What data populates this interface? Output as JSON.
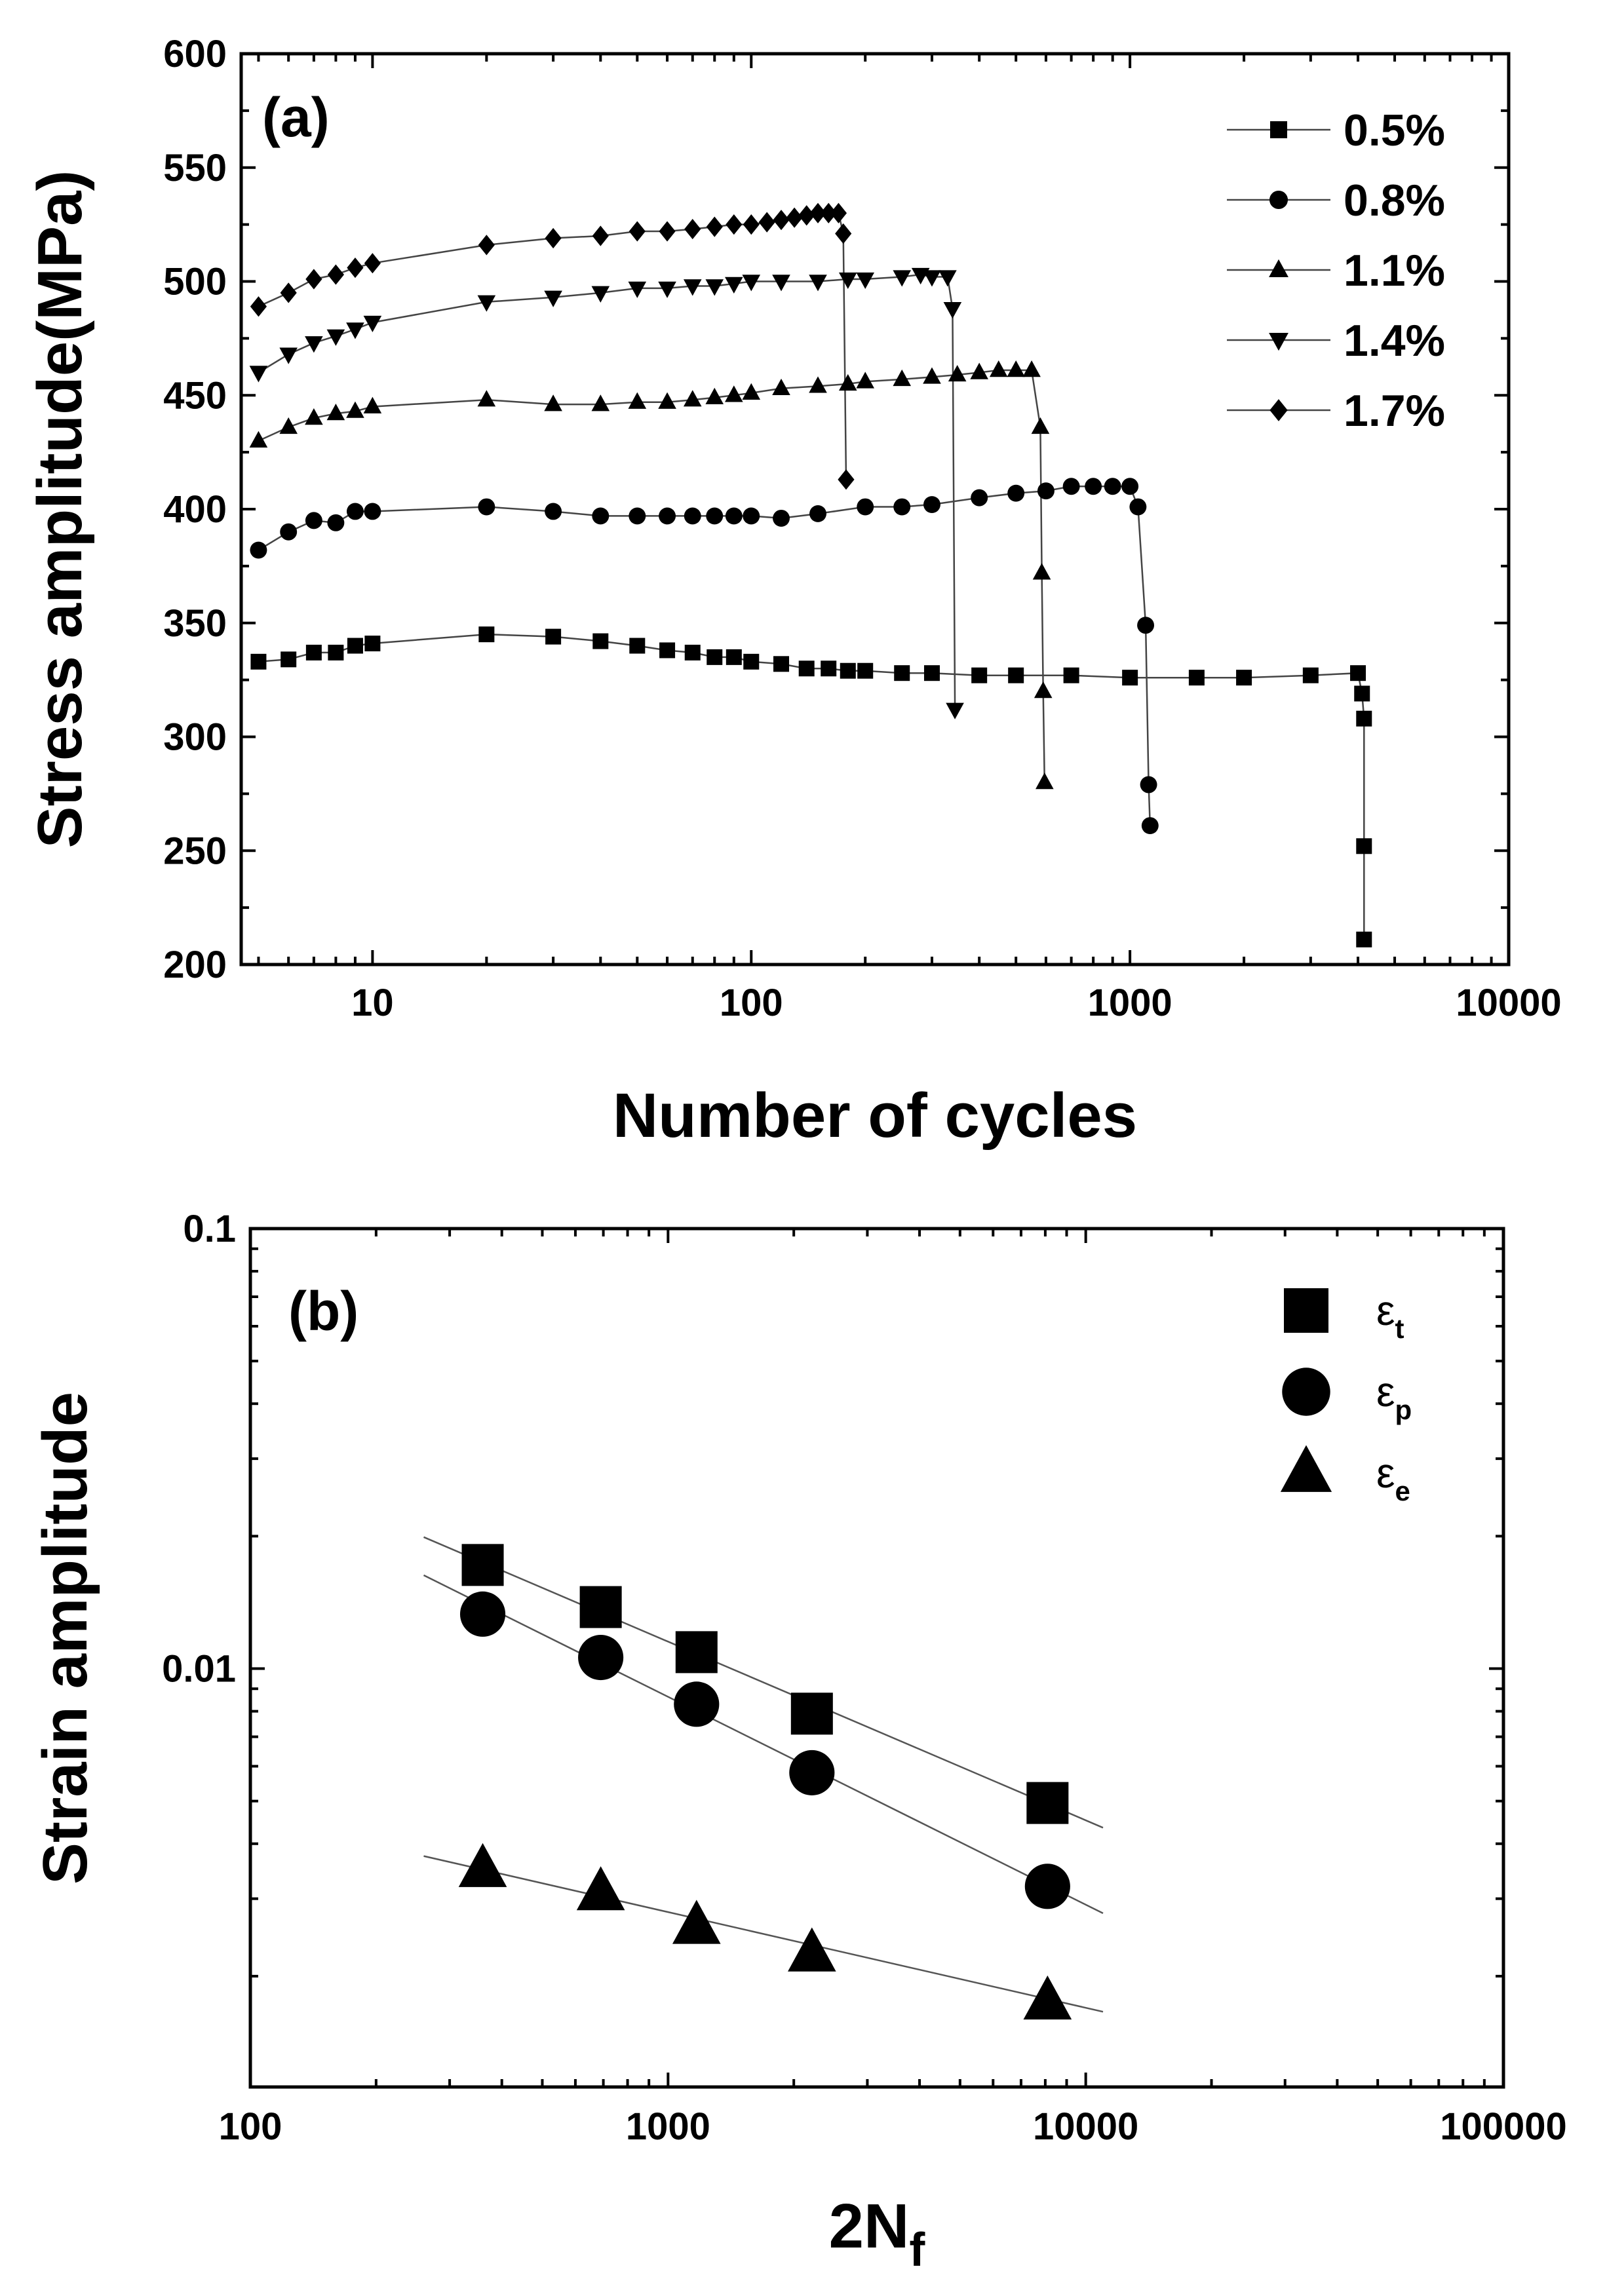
{
  "chart_data": [
    {
      "type": "scatter",
      "panel_label": "(a)",
      "xlabel": "Number of cycles",
      "ylabel": "Stress amplitude(MPa)",
      "xscale": "log",
      "xlim": [
        4.5,
        10000
      ],
      "ylim": [
        200,
        600
      ],
      "x_tick_labels": [
        "10",
        "100",
        "1000",
        "10000"
      ],
      "y_tick_labels": [
        "200",
        "250",
        "300",
        "350",
        "400",
        "450",
        "500",
        "550",
        "600"
      ],
      "grid": false,
      "legend_position": "top-right",
      "series": [
        {
          "name": "0.5%",
          "marker": "square",
          "x": [
            5,
            6,
            7,
            8,
            9,
            10,
            20,
            30,
            40,
            50,
            60,
            70,
            80,
            90,
            100,
            120,
            140,
            160,
            180,
            200,
            250,
            300,
            400,
            500,
            700,
            1000,
            1500,
            2000,
            3000,
            4000,
            4100,
            4150,
            4150,
            4150
          ],
          "y": [
            333,
            334,
            337,
            337,
            340,
            341,
            345,
            344,
            342,
            340,
            338,
            337,
            335,
            335,
            333,
            332,
            330,
            330,
            329,
            329,
            328,
            328,
            327,
            327,
            327,
            326,
            326,
            326,
            327,
            328,
            319,
            308,
            252,
            211
          ]
        },
        {
          "name": "0.8%",
          "marker": "circle",
          "x": [
            5,
            6,
            7,
            8,
            9,
            10,
            20,
            30,
            40,
            50,
            60,
            70,
            80,
            90,
            100,
            120,
            150,
            200,
            250,
            300,
            400,
            500,
            600,
            700,
            800,
            900,
            1000,
            1050,
            1100,
            1120,
            1130
          ],
          "y": [
            382,
            390,
            395,
            394,
            399,
            399,
            401,
            399,
            397,
            397,
            397,
            397,
            397,
            397,
            397,
            396,
            398,
            401,
            401,
            402,
            405,
            407,
            408,
            410,
            410,
            410,
            410,
            401,
            349,
            279,
            261
          ]
        },
        {
          "name": "1.1%",
          "marker": "triangle-up",
          "x": [
            5,
            6,
            7,
            8,
            9,
            10,
            20,
            30,
            40,
            50,
            60,
            70,
            80,
            90,
            100,
            120,
            150,
            180,
            200,
            250,
            300,
            350,
            400,
            450,
            500,
            550,
            580,
            585,
            590,
            595
          ],
          "y": [
            430,
            436,
            440,
            442,
            443,
            445,
            448,
            446,
            446,
            447,
            447,
            448,
            449,
            450,
            451,
            453,
            454,
            455,
            456,
            457,
            458,
            459,
            460,
            461,
            461,
            461,
            436,
            372,
            320,
            280
          ]
        },
        {
          "name": "1.4%",
          "marker": "triangle-down",
          "x": [
            5,
            6,
            7,
            8,
            9,
            10,
            20,
            30,
            40,
            50,
            60,
            70,
            80,
            90,
            100,
            120,
            150,
            180,
            200,
            250,
            280,
            300,
            330,
            340,
            345
          ],
          "y": [
            460,
            468,
            473,
            476,
            479,
            482,
            491,
            493,
            495,
            497,
            497,
            498,
            498,
            499,
            500,
            500,
            500,
            501,
            501,
            502,
            503,
            502,
            502,
            488,
            312
          ]
        },
        {
          "name": "1.7%",
          "marker": "diamond",
          "x": [
            5,
            6,
            7,
            8,
            9,
            10,
            20,
            30,
            40,
            50,
            60,
            70,
            80,
            90,
            100,
            110,
            120,
            130,
            140,
            150,
            160,
            170,
            175,
            178
          ],
          "y": [
            489,
            495,
            501,
            503,
            506,
            508,
            516,
            519,
            520,
            522,
            522,
            523,
            524,
            525,
            525,
            526,
            527,
            528,
            529,
            530,
            530,
            530,
            521,
            413
          ]
        }
      ]
    },
    {
      "type": "scatter",
      "panel_label": "(b)",
      "xlabel": "2N",
      "xlabel_sub": "f",
      "ylabel": "Strain amplitude",
      "xscale": "log",
      "yscale": "log",
      "xlim": [
        100,
        100000
      ],
      "ylim": [
        0.00112,
        0.1
      ],
      "x_tick_labels": [
        "100",
        "1000",
        "10000",
        "100000"
      ],
      "y_tick_labels": [
        "0.01",
        "0.1"
      ],
      "grid": false,
      "legend_position": "top-right",
      "series": [
        {
          "name": "ε",
          "sub": "t",
          "marker": "square",
          "x": [
            360,
            690,
            1170,
            2210,
            8100
          ],
          "y": [
            0.0172,
            0.0138,
            0.0109,
            0.0079,
            0.00495
          ]
        },
        {
          "name": "ε",
          "sub": "p",
          "marker": "circle",
          "x": [
            360,
            690,
            1170,
            2210,
            8100
          ],
          "y": [
            0.0133,
            0.0106,
            0.0083,
            0.0058,
            0.0032
          ]
        },
        {
          "name": "ε",
          "sub": "e",
          "marker": "triangle-up",
          "x": [
            360,
            690,
            1170,
            2210,
            8100
          ],
          "y": [
            0.0035,
            0.0031,
            0.0026,
            0.00225,
            0.00175
          ]
        }
      ],
      "fit_lines": [
        {
          "x": [
            260,
            11000
          ],
          "y": [
            0.0199,
            0.00435
          ]
        },
        {
          "x": [
            260,
            11000
          ],
          "y": [
            0.0163,
            0.00278
          ]
        },
        {
          "x": [
            260,
            11000
          ],
          "y": [
            0.00375,
            0.00166
          ]
        }
      ]
    }
  ]
}
